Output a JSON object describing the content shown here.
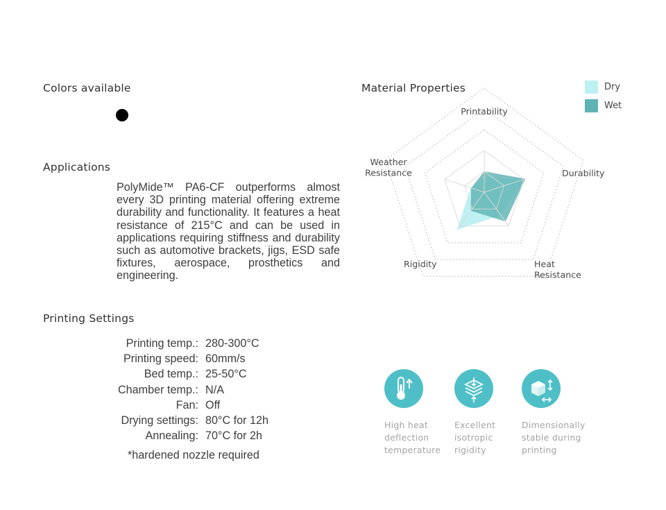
{
  "colors": {
    "heading": "Colors available",
    "swatches": [
      {
        "name": "black",
        "hex": "#000000"
      }
    ]
  },
  "applications": {
    "heading": "Applications",
    "text": "PolyMide™ PA6-CF outperforms almost every 3D printing material offering extreme durability and functionality. It features a heat resistance of 215°C and can be used in applications requiring stiffness and durability such as automotive brackets, jigs, ESD safe fixtures, aerospace, prosthetics and engineering."
  },
  "printing": {
    "heading": "Printing Settings",
    "rows": [
      {
        "label": "Printing temp.:",
        "value": "280-300°C"
      },
      {
        "label": "Printing speed:",
        "value": "60mm/s"
      },
      {
        "label": "Bed temp.:",
        "value": "25-50°C"
      },
      {
        "label": "Chamber temp.:",
        "value": "N/A"
      },
      {
        "label": "Fan:",
        "value": "Off"
      },
      {
        "label": "Drying settings:",
        "value": "80°C for 12h"
      },
      {
        "label": "Annealing:",
        "value": "70°C for 2h"
      }
    ],
    "note": "*hardened nozzle required"
  },
  "chart_data": {
    "type": "radar",
    "title": "Material Properties",
    "axes": [
      "Printability",
      "Durability",
      "Heat Resistance",
      "Rigidity",
      "Weather Resistance"
    ],
    "rmax": 10,
    "rings": 5,
    "gridline_style": "dotted",
    "legend_placement": "top-right",
    "series": [
      {
        "name": "Dry",
        "color": "#bcf0f2",
        "values": [
          3.5,
          10.2,
          6.8,
          11.2,
          3.4
        ]
      },
      {
        "name": "Wet",
        "color": "#5fb3b3",
        "values": [
          5.0,
          10.4,
          8.7,
          5.5,
          3.3
        ]
      }
    ]
  },
  "features": [
    {
      "icon": "thermometer-icon",
      "label": "High heat\ndeflection\ntemperature"
    },
    {
      "icon": "layers-icon",
      "label": "Excellent\nisotropic\nrigidity"
    },
    {
      "icon": "cube-icon",
      "label": "Dimensionally\nstable during\nprinting"
    }
  ]
}
